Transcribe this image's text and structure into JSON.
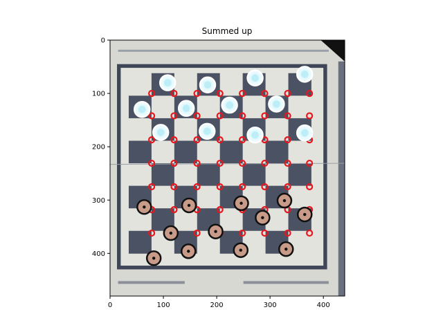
{
  "title": "Summed up",
  "axes": {
    "xlim": [
      0,
      440
    ],
    "ylim": [
      480,
      0
    ],
    "xticks": [
      0,
      100,
      200,
      300,
      400
    ],
    "yticks": [
      0,
      100,
      200,
      300,
      400
    ]
  },
  "colors": {
    "board_frame": "#d7d8d2",
    "board_dark": "#4a5263",
    "board_light": "#e2e3dd",
    "board_border": "#3f4658",
    "grid_marker": "#e8161d",
    "white_piece": "#e9fbff",
    "black_piece_fill": "#c89a88",
    "black_piece_ring": "#111111"
  },
  "board": {
    "outer": [
      0,
      0,
      440,
      480
    ],
    "inner": [
      13,
      45,
      407,
      430
    ],
    "grid": [
      35,
      62,
      377,
      400
    ],
    "rows": 8,
    "cols": 8
  },
  "grid_points": {
    "xs": [
      78,
      120,
      163,
      206,
      248,
      290,
      333,
      374
    ],
    "ys": [
      100,
      142,
      187,
      231,
      275,
      318,
      362
    ]
  },
  "white_pieces": [
    [
      108,
      80
    ],
    [
      183,
      84
    ],
    [
      272,
      71
    ],
    [
      365,
      64
    ],
    [
      60,
      130
    ],
    [
      143,
      128
    ],
    [
      224,
      122
    ],
    [
      312,
      120
    ],
    [
      95,
      173
    ],
    [
      182,
      171
    ],
    [
      272,
      178
    ],
    [
      365,
      174
    ]
  ],
  "black_pieces": [
    [
      64,
      313
    ],
    [
      148,
      310
    ],
    [
      246,
      306
    ],
    [
      327,
      301
    ],
    [
      286,
      333
    ],
    [
      365,
      327
    ],
    [
      114,
      362
    ],
    [
      198,
      359
    ],
    [
      82,
      409
    ],
    [
      147,
      396
    ],
    [
      245,
      394
    ],
    [
      330,
      392
    ]
  ]
}
